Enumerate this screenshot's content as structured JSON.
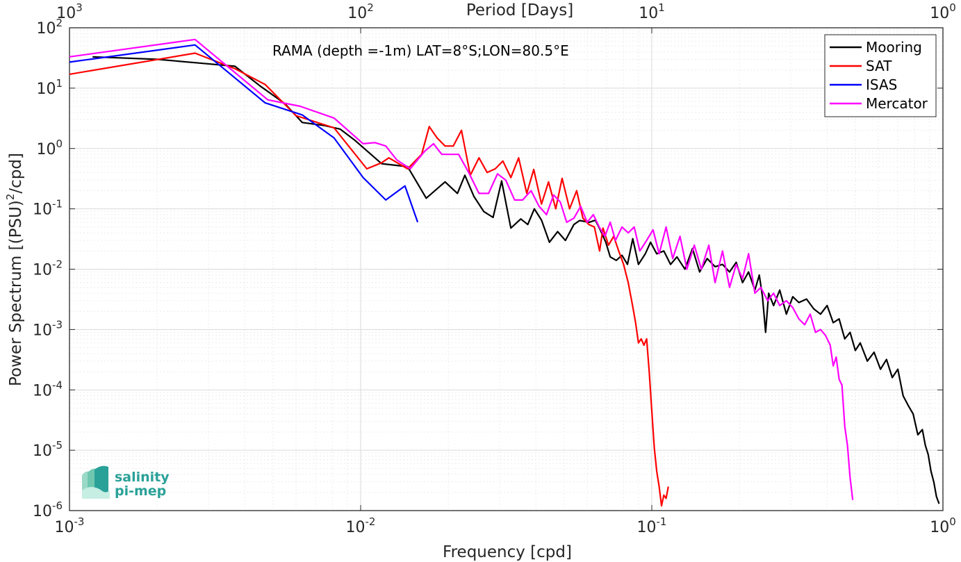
{
  "chart_data": {
    "type": "line",
    "title": "RAMA (depth =-1m) LAT=8°S;LON=80.5°E",
    "xlabel": "Frequency [cpd]",
    "ylabel": "Power Spectrum [(PSU)²/cpd]",
    "top_xlabel": "Period [Days]",
    "x_scale": "log",
    "y_scale": "log",
    "xlim": [
      0.001,
      1
    ],
    "ylim": [
      1e-06,
      100
    ],
    "x_ticks": [
      {
        "value": 0.001,
        "base": "10",
        "exp": "-3"
      },
      {
        "value": 0.01,
        "base": "10",
        "exp": "-2"
      },
      {
        "value": 0.1,
        "base": "10",
        "exp": "-1"
      },
      {
        "value": 1,
        "base": "10",
        "exp": "0"
      }
    ],
    "top_ticks": [
      {
        "value": 0.001,
        "base": "10",
        "exp": "3"
      },
      {
        "value": 0.01,
        "base": "10",
        "exp": "2"
      },
      {
        "value": 0.1,
        "base": "10",
        "exp": "1"
      },
      {
        "value": 1,
        "base": "10",
        "exp": "0"
      }
    ],
    "y_ticks": [
      {
        "value": 100,
        "base": "10",
        "exp": "2"
      },
      {
        "value": 10,
        "base": "10",
        "exp": "1"
      },
      {
        "value": 1,
        "base": "10",
        "exp": "0"
      },
      {
        "value": 0.1,
        "base": "10",
        "exp": "-1"
      },
      {
        "value": 0.01,
        "base": "10",
        "exp": "-2"
      },
      {
        "value": 0.001,
        "base": "10",
        "exp": "-3"
      },
      {
        "value": 0.0001,
        "base": "10",
        "exp": "-4"
      },
      {
        "value": 1e-05,
        "base": "10",
        "exp": "-5"
      },
      {
        "value": 1e-06,
        "base": "10",
        "exp": "-6"
      }
    ],
    "grid": true,
    "legend_position": "top-right",
    "series": [
      {
        "name": "Mooring",
        "color": "#000000",
        "points": [
          [
            0.0012,
            33
          ],
          [
            0.002,
            30
          ],
          [
            0.0028,
            26
          ],
          [
            0.0037,
            23
          ],
          [
            0.0045,
            11
          ],
          [
            0.0055,
            5.5
          ],
          [
            0.0063,
            2.7
          ],
          [
            0.0075,
            2.4
          ],
          [
            0.0085,
            2.1
          ],
          [
            0.0095,
            1.4
          ],
          [
            0.0118,
            0.56
          ],
          [
            0.0145,
            0.5
          ],
          [
            0.0168,
            0.15
          ],
          [
            0.0195,
            0.28
          ],
          [
            0.0215,
            0.18
          ],
          [
            0.0228,
            0.36
          ],
          [
            0.0245,
            0.16
          ],
          [
            0.0265,
            0.09
          ],
          [
            0.0285,
            0.072
          ],
          [
            0.0305,
            0.29
          ],
          [
            0.0328,
            0.048
          ],
          [
            0.0355,
            0.068
          ],
          [
            0.0375,
            0.055
          ],
          [
            0.0395,
            0.1
          ],
          [
            0.0418,
            0.065
          ],
          [
            0.0445,
            0.028
          ],
          [
            0.0475,
            0.042
          ],
          [
            0.0505,
            0.03
          ],
          [
            0.054,
            0.055
          ],
          [
            0.0565,
            0.064
          ],
          [
            0.061,
            0.06
          ],
          [
            0.064,
            0.065
          ],
          [
            0.0665,
            0.045
          ],
          [
            0.0695,
            0.028
          ],
          [
            0.072,
            0.016
          ],
          [
            0.0755,
            0.014
          ],
          [
            0.079,
            0.017
          ],
          [
            0.0825,
            0.012
          ],
          [
            0.086,
            0.032
          ],
          [
            0.09,
            0.012
          ],
          [
            0.095,
            0.018
          ],
          [
            0.099,
            0.028
          ],
          [
            0.104,
            0.018
          ],
          [
            0.11,
            0.02
          ],
          [
            0.116,
            0.012
          ],
          [
            0.122,
            0.016
          ],
          [
            0.13,
            0.01
          ],
          [
            0.138,
            0.022
          ],
          [
            0.146,
            0.009
          ],
          [
            0.155,
            0.015
          ],
          [
            0.165,
            0.011
          ],
          [
            0.175,
            0.012
          ],
          [
            0.185,
            0.009
          ],
          [
            0.195,
            0.013
          ],
          [
            0.205,
            0.006
          ],
          [
            0.215,
            0.009
          ],
          [
            0.226,
            0.0045
          ],
          [
            0.234,
            0.008
          ],
          [
            0.24,
            0.0035
          ],
          [
            0.246,
            0.0009
          ],
          [
            0.252,
            0.004
          ],
          [
            0.262,
            0.0025
          ],
          [
            0.275,
            0.0045
          ],
          [
            0.29,
            0.0018
          ],
          [
            0.305,
            0.0035
          ],
          [
            0.32,
            0.0028
          ],
          [
            0.34,
            0.0032
          ],
          [
            0.36,
            0.0022
          ],
          [
            0.38,
            0.0018
          ],
          [
            0.4,
            0.0025
          ],
          [
            0.42,
            0.0013
          ],
          [
            0.44,
            0.0015
          ],
          [
            0.46,
            0.0007
          ],
          [
            0.48,
            0.0009
          ],
          [
            0.5,
            0.00045
          ],
          [
            0.52,
            0.0006
          ],
          [
            0.55,
            0.0003
          ],
          [
            0.58,
            0.00042
          ],
          [
            0.61,
            0.00022
          ],
          [
            0.64,
            0.00032
          ],
          [
            0.67,
            0.00016
          ],
          [
            0.7,
            0.00022
          ],
          [
            0.73,
            8e-05
          ],
          [
            0.76,
            5.5e-05
          ],
          [
            0.79,
            4e-05
          ],
          [
            0.82,
            1.8e-05
          ],
          [
            0.85,
            2.2e-05
          ],
          [
            0.87,
            1.2e-05
          ],
          [
            0.89,
            8.5e-06
          ],
          [
            0.91,
            4.5e-06
          ],
          [
            0.93,
            3e-06
          ],
          [
            0.95,
            1.7e-06
          ],
          [
            0.97,
            1.3e-06
          ]
        ]
      },
      {
        "name": "SAT",
        "color": "#ff0000",
        "points": [
          [
            0.001,
            17
          ],
          [
            0.0027,
            38
          ],
          [
            0.0037,
            21
          ],
          [
            0.0047,
            11.5
          ],
          [
            0.006,
            3.5
          ],
          [
            0.0081,
            2.2
          ],
          [
            0.0105,
            0.46
          ],
          [
            0.0118,
            0.58
          ],
          [
            0.0125,
            0.7
          ],
          [
            0.0145,
            0.46
          ],
          [
            0.0162,
            0.8
          ],
          [
            0.0172,
            2.3
          ],
          [
            0.0183,
            1.5
          ],
          [
            0.0195,
            1.1
          ],
          [
            0.0208,
            1.1
          ],
          [
            0.0222,
            2.0
          ],
          [
            0.0238,
            0.36
          ],
          [
            0.0255,
            0.7
          ],
          [
            0.0272,
            0.4
          ],
          [
            0.029,
            0.46
          ],
          [
            0.0308,
            0.62
          ],
          [
            0.0328,
            0.33
          ],
          [
            0.0349,
            0.7
          ],
          [
            0.0372,
            0.18
          ],
          [
            0.0393,
            0.45
          ],
          [
            0.0418,
            0.12
          ],
          [
            0.0442,
            0.28
          ],
          [
            0.0468,
            0.1
          ],
          [
            0.0492,
            0.32
          ],
          [
            0.0522,
            0.1
          ],
          [
            0.0552,
            0.2
          ],
          [
            0.058,
            0.07
          ],
          [
            0.0608,
            0.055
          ],
          [
            0.0635,
            0.05
          ],
          [
            0.0662,
            0.02
          ],
          [
            0.068,
            0.048
          ],
          [
            0.071,
            0.025
          ],
          [
            0.074,
            0.035
          ],
          [
            0.077,
            0.02
          ],
          [
            0.08,
            0.012
          ],
          [
            0.083,
            0.006
          ],
          [
            0.086,
            0.0024
          ],
          [
            0.088,
            0.0013
          ],
          [
            0.09,
            0.0006
          ],
          [
            0.092,
            0.0007
          ],
          [
            0.094,
            0.00055
          ],
          [
            0.096,
            0.0007
          ],
          [
            0.098,
            0.0002
          ],
          [
            0.1,
            4.5e-05
          ],
          [
            0.102,
            1.1e-05
          ],
          [
            0.104,
            4.5e-06
          ],
          [
            0.106,
            2.5e-06
          ],
          [
            0.108,
            1.2e-06
          ],
          [
            0.11,
            1.8e-06
          ],
          [
            0.112,
            1.6e-06
          ],
          [
            0.114,
            2.5e-06
          ]
        ]
      },
      {
        "name": "ISAS",
        "color": "#0000ff",
        "points": [
          [
            0.001,
            27
          ],
          [
            0.0027,
            52
          ],
          [
            0.0047,
            5.7
          ],
          [
            0.0063,
            3.6
          ],
          [
            0.0081,
            1.5
          ],
          [
            0.0102,
            0.33
          ],
          [
            0.0122,
            0.14
          ],
          [
            0.0142,
            0.24
          ],
          [
            0.0157,
            0.06
          ]
        ]
      },
      {
        "name": "Mercator",
        "color": "#ff00ff",
        "points": [
          [
            0.001,
            33
          ],
          [
            0.0027,
            64
          ],
          [
            0.0048,
            6.4
          ],
          [
            0.0062,
            5.0
          ],
          [
            0.0081,
            3.2
          ],
          [
            0.0102,
            1.2
          ],
          [
            0.0112,
            1.25
          ],
          [
            0.0122,
            1.1
          ],
          [
            0.0133,
            0.65
          ],
          [
            0.0148,
            0.46
          ],
          [
            0.0166,
            0.9
          ],
          [
            0.0178,
            1.2
          ],
          [
            0.019,
            0.8
          ],
          [
            0.0203,
            0.8
          ],
          [
            0.0217,
            0.8
          ],
          [
            0.0235,
            0.4
          ],
          [
            0.0255,
            0.18
          ],
          [
            0.0275,
            0.18
          ],
          [
            0.0295,
            0.38
          ],
          [
            0.0315,
            0.3
          ],
          [
            0.0338,
            0.14
          ],
          [
            0.036,
            0.14
          ],
          [
            0.0385,
            0.2
          ],
          [
            0.041,
            0.11
          ],
          [
            0.0435,
            0.08
          ],
          [
            0.046,
            0.17
          ],
          [
            0.0485,
            0.13
          ],
          [
            0.051,
            0.06
          ],
          [
            0.054,
            0.07
          ],
          [
            0.057,
            0.11
          ],
          [
            0.06,
            0.06
          ],
          [
            0.063,
            0.08
          ],
          [
            0.066,
            0.05
          ],
          [
            0.069,
            0.035
          ],
          [
            0.072,
            0.06
          ],
          [
            0.075,
            0.03
          ],
          [
            0.079,
            0.05
          ],
          [
            0.083,
            0.04
          ],
          [
            0.087,
            0.05
          ],
          [
            0.091,
            0.02
          ],
          [
            0.096,
            0.03
          ],
          [
            0.101,
            0.045
          ],
          [
            0.106,
            0.018
          ],
          [
            0.112,
            0.05
          ],
          [
            0.118,
            0.015
          ],
          [
            0.125,
            0.035
          ],
          [
            0.132,
            0.01
          ],
          [
            0.14,
            0.025
          ],
          [
            0.148,
            0.01
          ],
          [
            0.157,
            0.025
          ],
          [
            0.165,
            0.006
          ],
          [
            0.175,
            0.02
          ],
          [
            0.185,
            0.005
          ],
          [
            0.195,
            0.012
          ],
          [
            0.205,
            0.007
          ],
          [
            0.215,
            0.018
          ],
          [
            0.226,
            0.004
          ],
          [
            0.237,
            0.005
          ],
          [
            0.25,
            0.003
          ],
          [
            0.262,
            0.004
          ],
          [
            0.275,
            0.0025
          ],
          [
            0.29,
            0.003
          ],
          [
            0.305,
            0.0023
          ],
          [
            0.32,
            0.0015
          ],
          [
            0.335,
            0.0012
          ],
          [
            0.35,
            0.0018
          ],
          [
            0.365,
            0.0009
          ],
          [
            0.38,
            0.001
          ],
          [
            0.395,
            0.0008
          ],
          [
            0.41,
            0.00055
          ],
          [
            0.42,
            0.00025
          ],
          [
            0.43,
            0.00035
          ],
          [
            0.44,
            0.00015
          ],
          [
            0.45,
            0.00012
          ],
          [
            0.46,
            2.5e-05
          ],
          [
            0.47,
            1.2e-05
          ],
          [
            0.48,
            3.5e-06
          ],
          [
            0.49,
            1.5e-06
          ]
        ]
      }
    ]
  },
  "logo": {
    "line1": "salinity",
    "line2": "pi-mep",
    "color": "#2aa198"
  }
}
